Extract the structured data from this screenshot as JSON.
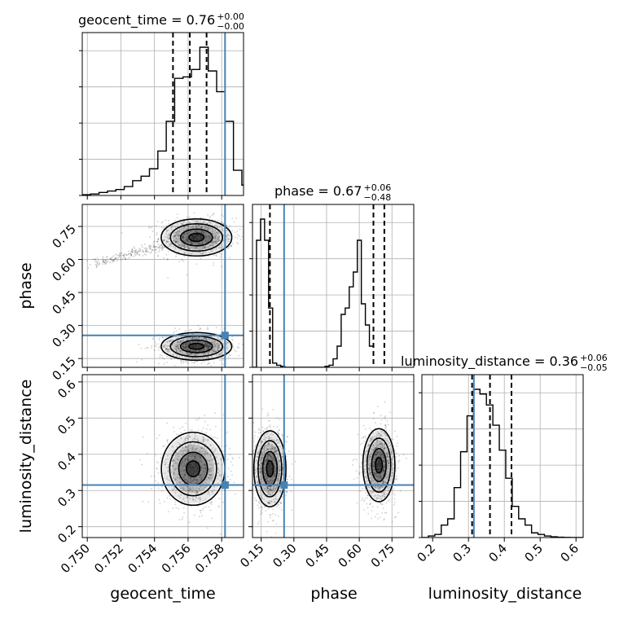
{
  "chart_data": {
    "type": "corner",
    "parameters": [
      "geocent_time",
      "phase",
      "luminosity_distance"
    ],
    "titles": [
      {
        "param": "geocent_time",
        "text": "geocent_time = 0.76",
        "sup": "+0.00",
        "sub": "−0.00"
      },
      {
        "param": "phase",
        "text": "phase = 0.67",
        "sup": "+0.06",
        "sub": "−0.48"
      },
      {
        "param": "luminosity_distance",
        "text": "luminosity_distance = 0.36",
        "sup": "+0.06",
        "sub": "−0.05"
      }
    ],
    "ranges": {
      "geocent_time": [
        0.7497,
        0.7593
      ],
      "phase": [
        0.11,
        0.85
      ],
      "luminosity_distance": [
        0.17,
        0.62
      ]
    },
    "ticks": {
      "geocent_time": {
        "values": [
          0.75,
          0.752,
          0.754,
          0.756,
          0.758
        ],
        "labels": [
          "0.750",
          "0.752",
          "0.754",
          "0.756",
          "0.758"
        ]
      },
      "phase": {
        "values": [
          0.15,
          0.3,
          0.45,
          0.6,
          0.75
        ],
        "labels": [
          "0.15",
          "0.30",
          "0.45",
          "0.60",
          "0.75"
        ]
      },
      "luminosity_distance": {
        "values": [
          0.2,
          0.3,
          0.4,
          0.5,
          0.6
        ],
        "labels": [
          "0.2",
          "0.3",
          "0.4",
          "0.5",
          "0.6"
        ]
      }
    },
    "truths": {
      "geocent_time": 0.7582,
      "phase": 0.255,
      "luminosity_distance": 0.315
    },
    "truth_color": "#4682b4",
    "quantiles": {
      "geocent_time": [
        0.7551,
        0.7561,
        0.7571
      ],
      "phase": [
        0.19,
        0.665,
        0.715
      ],
      "luminosity_distance": [
        0.31,
        0.36,
        0.42
      ]
    },
    "histograms": {
      "geocent_time": {
        "edges_start": 0.7497,
        "bin_width": 0.0005,
        "counts": [
          0.5,
          1,
          2,
          3,
          4,
          6,
          10,
          13,
          18,
          30,
          50,
          79,
          80,
          85,
          100,
          84,
          70,
          50,
          17,
          7,
          5,
          0
        ]
      },
      "phase": {
        "edges_start": 0.11,
        "bin_width": 0.0185,
        "counts": [
          0,
          60,
          70,
          60,
          28,
          2,
          1,
          0.5,
          0,
          0,
          0,
          0,
          0,
          0,
          0,
          0,
          0,
          0,
          0.5,
          1,
          4,
          10,
          25,
          28,
          38,
          45,
          60,
          30,
          20,
          10
        ]
      },
      "luminosity_distance": {
        "edges_start": 0.17,
        "bin_width": 0.018,
        "counts": [
          0,
          1,
          2,
          8,
          12,
          32,
          55,
          78,
          95,
          92,
          85,
          72,
          56,
          38,
          20,
          12,
          8,
          3,
          2,
          1,
          0.5,
          0.2,
          0.1,
          0.05,
          0
        ]
      }
    },
    "clusters": {
      "geocent_time-phase": [
        {
          "x": 0.7565,
          "y": 0.7,
          "sx": 0.001,
          "sy": 0.04
        },
        {
          "x": 0.7565,
          "y": 0.205,
          "sx": 0.001,
          "sy": 0.03
        }
      ],
      "geocent_time-luminosity_distance": [
        {
          "x": 0.7563,
          "y": 0.36,
          "sx": 0.0009,
          "sy": 0.048
        }
      ],
      "phase-luminosity_distance": [
        {
          "x": 0.19,
          "y": 0.36,
          "sx": 0.035,
          "sy": 0.05
        },
        {
          "x": 0.69,
          "y": 0.37,
          "sx": 0.035,
          "sy": 0.048
        }
      ]
    },
    "grid": true,
    "axis_labels": {
      "y_rows": [
        "",
        "phase",
        "luminosity_distance"
      ],
      "x_cols": [
        "geocent_time",
        "phase",
        "luminosity_distance"
      ]
    }
  }
}
